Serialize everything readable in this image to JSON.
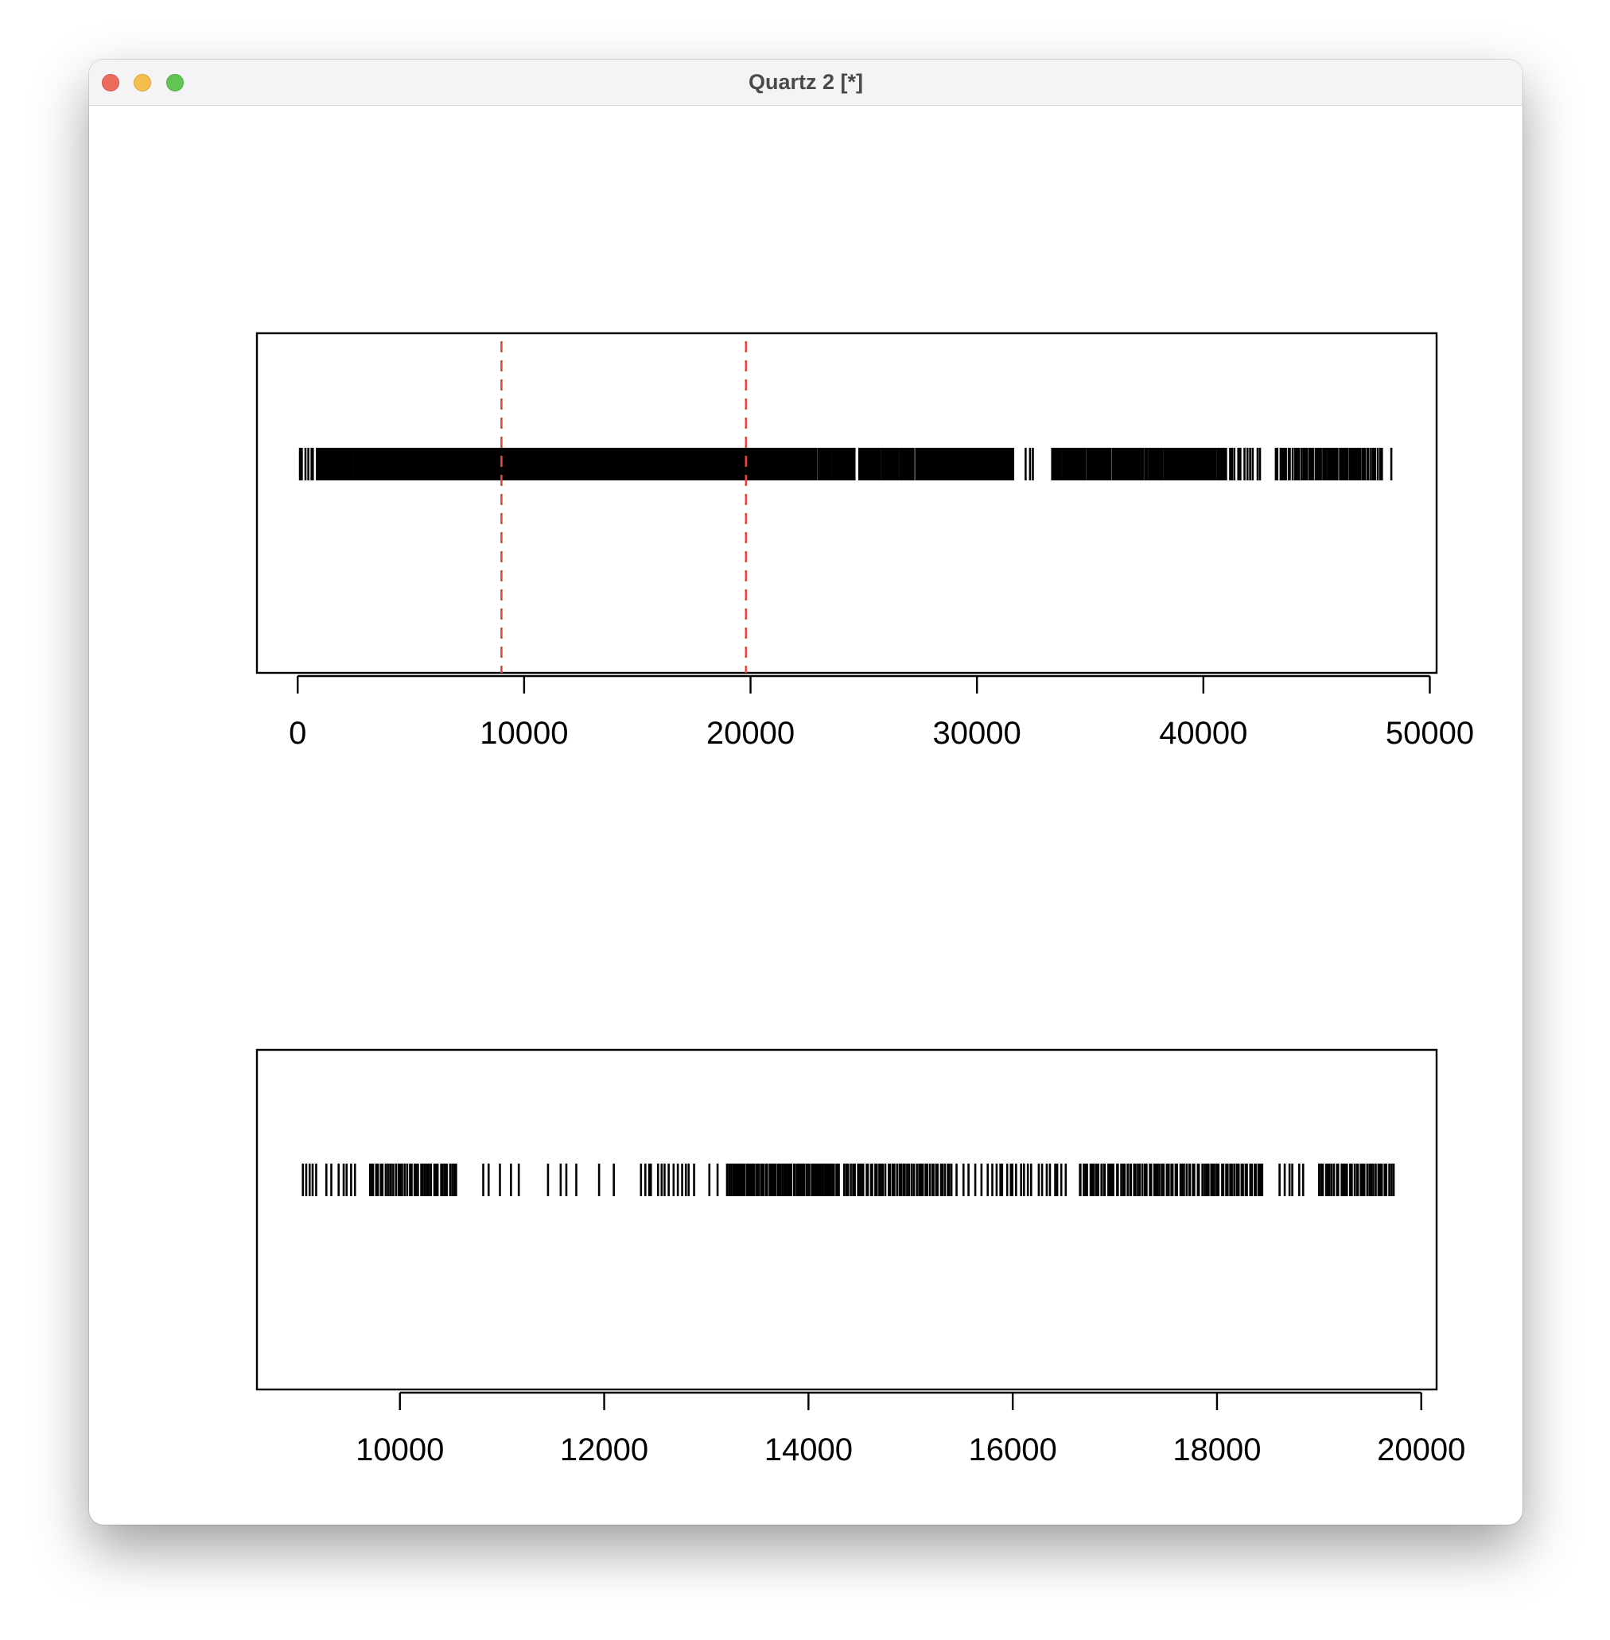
{
  "window": {
    "title": "Quartz 2 [*]",
    "buttons": [
      "close",
      "minimize",
      "zoom"
    ]
  },
  "chart_data": [
    {
      "type": "rug",
      "panel": "top",
      "xlim": [
        -1800,
        50300
      ],
      "xticks": [
        0,
        10000,
        20000,
        30000,
        40000,
        50000
      ],
      "tick_labels": [
        "0",
        "10000",
        "20000",
        "30000",
        "40000",
        "50000"
      ],
      "vlines": [
        9000,
        19800
      ],
      "vline_color": "#e8453c",
      "vline_style": "dashed",
      "mark_color": "#000000",
      "segments": [
        [
          100,
          700,
          6
        ],
        [
          850,
          3900,
          60
        ],
        [
          3900,
          7000,
          95
        ],
        [
          7000,
          8500,
          55
        ],
        [
          8500,
          10500,
          70
        ],
        [
          10500,
          12000,
          30
        ],
        [
          12000,
          16500,
          150
        ],
        [
          16500,
          22900,
          240
        ],
        [
          23000,
          24600,
          30
        ],
        [
          24800,
          27200,
          45
        ],
        [
          27300,
          31600,
          85
        ],
        [
          32100,
          32500,
          3
        ],
        [
          33300,
          38000,
          80
        ],
        [
          38000,
          41000,
          55
        ],
        [
          41000,
          42500,
          12
        ],
        [
          43200,
          44500,
          15
        ],
        [
          44500,
          47300,
          40
        ],
        [
          47400,
          47900,
          6
        ],
        [
          48300,
          48400,
          1
        ]
      ],
      "events": []
    },
    {
      "type": "rug",
      "panel": "bottom",
      "xlim": [
        8600,
        20150
      ],
      "xticks": [
        10000,
        12000,
        14000,
        16000,
        18000,
        20000
      ],
      "tick_labels": [
        "10000",
        "12000",
        "14000",
        "16000",
        "18000",
        "20000"
      ],
      "mark_color": "#000000",
      "segments": [
        [
          9050,
          9180,
          5
        ],
        [
          9280,
          9330,
          2
        ],
        [
          9400,
          9560,
          5
        ],
        [
          9700,
          10550,
          40
        ],
        [
          10800,
          11170,
          5
        ],
        [
          11450,
          11750,
          4
        ],
        [
          11950,
          12100,
          2
        ],
        [
          12350,
          12880,
          14
        ],
        [
          13030,
          13110,
          2
        ],
        [
          13200,
          14300,
          70
        ],
        [
          14350,
          15400,
          50
        ],
        [
          15450,
          15760,
          6
        ],
        [
          15800,
          16180,
          12
        ],
        [
          16250,
          16520,
          8
        ],
        [
          16650,
          18450,
          85
        ],
        [
          18600,
          18850,
          6
        ],
        [
          19000,
          19730,
          35
        ]
      ],
      "events": []
    }
  ]
}
